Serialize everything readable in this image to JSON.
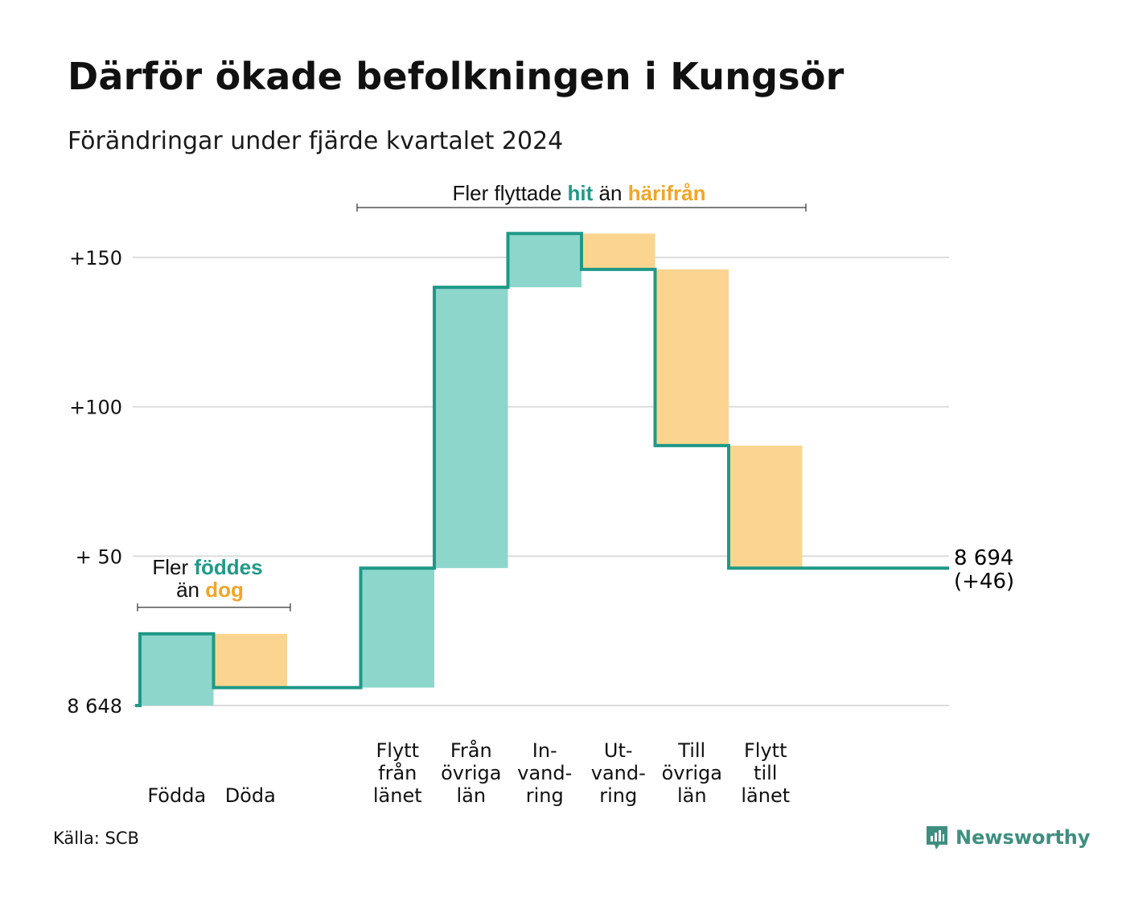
{
  "title": "Därför ökade befolkningen i Kungsör",
  "subtitle": "Förändringar under fjärde kvartalet 2024",
  "source": "Källa: SCB",
  "brand": {
    "name": "Newsworthy",
    "icon": "newsworthy-logo-icon"
  },
  "colors": {
    "positive": "#8dd6cc",
    "negative": "#fbd58f",
    "line": "#1f9987",
    "hit": "#1f9987",
    "harifran": "#f2a527",
    "grid": "#dcdcdc"
  },
  "annotations": {
    "births": {
      "line1_prefix": "Fler ",
      "line1_emph": "föddes",
      "line2_prefix": "än ",
      "line2_emph": "dog"
    },
    "migration": {
      "prefix": "Fler flyttade ",
      "emph1": "hit",
      "middle": " än ",
      "emph2": "härifrån"
    }
  },
  "chart_data": {
    "type": "waterfall",
    "title": "Därför ökade befolkningen i Kungsör",
    "subtitle": "Förändringar under fjärde kvartalet 2024",
    "base_population": 8648,
    "ylim": [
      0,
      160
    ],
    "y_ticks": [
      {
        "value": 0,
        "label": "8 648"
      },
      {
        "value": 50,
        "label": "+ 50"
      },
      {
        "value": 100,
        "label": "+100"
      },
      {
        "value": 150,
        "label": "+150"
      }
    ],
    "grid": true,
    "categories": [
      {
        "label": [
          "Födda"
        ],
        "change": 24
      },
      {
        "label": [
          "Döda"
        ],
        "change": -18
      },
      {
        "label": [],
        "change": 0
      },
      {
        "label": [
          "Flytt",
          "från",
          "länet"
        ],
        "change": 40
      },
      {
        "label": [
          "Från",
          "övriga",
          "län"
        ],
        "change": 94
      },
      {
        "label": [
          "In-",
          "vand-",
          "ring"
        ],
        "change": 18
      },
      {
        "label": [
          "Ut-",
          "vand-",
          "ring"
        ],
        "change": -12
      },
      {
        "label": [
          "Till",
          "övriga",
          "län"
        ],
        "change": -59
      },
      {
        "label": [
          "Flytt",
          "till",
          "länet"
        ],
        "change": -41
      }
    ],
    "end_label": {
      "line1": "8 694",
      "line2": "(+46)"
    }
  }
}
